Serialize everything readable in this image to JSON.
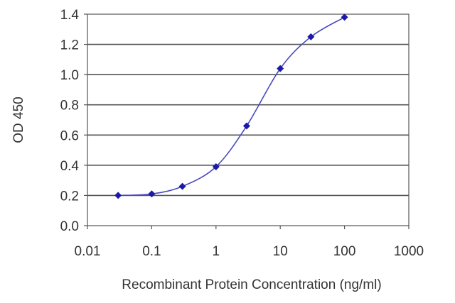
{
  "chart_data": {
    "type": "line",
    "title": "",
    "xlabel": "Recombinant Protein Concentration (ng/ml)",
    "ylabel": "OD 450",
    "x_scale": "log",
    "xlim": [
      0.01,
      1000
    ],
    "ylim": [
      0.0,
      1.4
    ],
    "x_ticks": [
      "0.01",
      "0.1",
      "1",
      "10",
      "100",
      "1000"
    ],
    "y_ticks": [
      "0.0",
      "0.2",
      "0.4",
      "0.6",
      "0.8",
      "1.0",
      "1.2",
      "1.4"
    ],
    "grid": "horizontal",
    "legend": "none",
    "series": [
      {
        "x": [
          0.03,
          0.1,
          0.3,
          1,
          3,
          10,
          30,
          100
        ],
        "y": [
          0.2,
          0.21,
          0.26,
          0.39,
          0.66,
          1.04,
          1.25,
          1.38
        ],
        "marker": "diamond",
        "color": "#1a1aa6",
        "line_color": "#4a4ac0"
      }
    ],
    "colors": {
      "plot_border": "#555555",
      "grid": "#555555",
      "text": "#333333"
    }
  }
}
